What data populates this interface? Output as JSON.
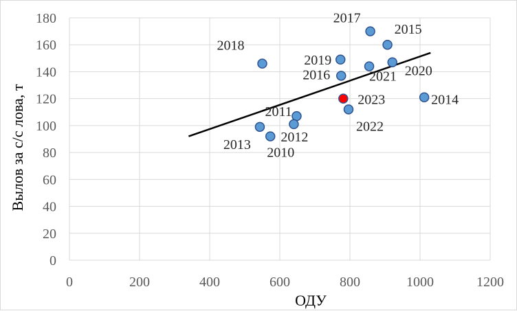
{
  "chart_data": {
    "type": "scatter",
    "title": "",
    "xlabel": "ОДУ",
    "ylabel": "Вылов за с/с лова, т",
    "xlim": [
      0,
      1200
    ],
    "ylim": [
      0,
      180
    ],
    "xticks": [
      0,
      200,
      400,
      600,
      800,
      1000,
      1200
    ],
    "yticks": [
      0,
      20,
      40,
      60,
      80,
      100,
      120,
      140,
      160,
      180
    ],
    "grid": true,
    "legend": "none",
    "colors": {
      "point": "#5b9bd5",
      "point_edge": "#2f528f",
      "highlight": "#ff0000",
      "trend": "#000000",
      "grid": "#d9d9d9"
    },
    "points": [
      {
        "label": "2010",
        "x": 573,
        "y": 92
      },
      {
        "label": "2011",
        "x": 648,
        "y": 107
      },
      {
        "label": "2012",
        "x": 640,
        "y": 101
      },
      {
        "label": "2013",
        "x": 543,
        "y": 99
      },
      {
        "label": "2014",
        "x": 1012,
        "y": 121
      },
      {
        "label": "2015",
        "x": 907,
        "y": 160
      },
      {
        "label": "2016",
        "x": 775,
        "y": 137
      },
      {
        "label": "2017",
        "x": 858,
        "y": 170
      },
      {
        "label": "2018",
        "x": 550,
        "y": 146
      },
      {
        "label": "2019",
        "x": 773,
        "y": 149
      },
      {
        "label": "2020",
        "x": 921,
        "y": 147
      },
      {
        "label": "2021",
        "x": 855,
        "y": 144
      },
      {
        "label": "2022",
        "x": 796,
        "y": 112
      },
      {
        "label": "2023",
        "x": 781,
        "y": 120,
        "highlight": true
      }
    ],
    "trendline": {
      "x": [
        340,
        1030
      ],
      "y": [
        92,
        154
      ]
    }
  }
}
